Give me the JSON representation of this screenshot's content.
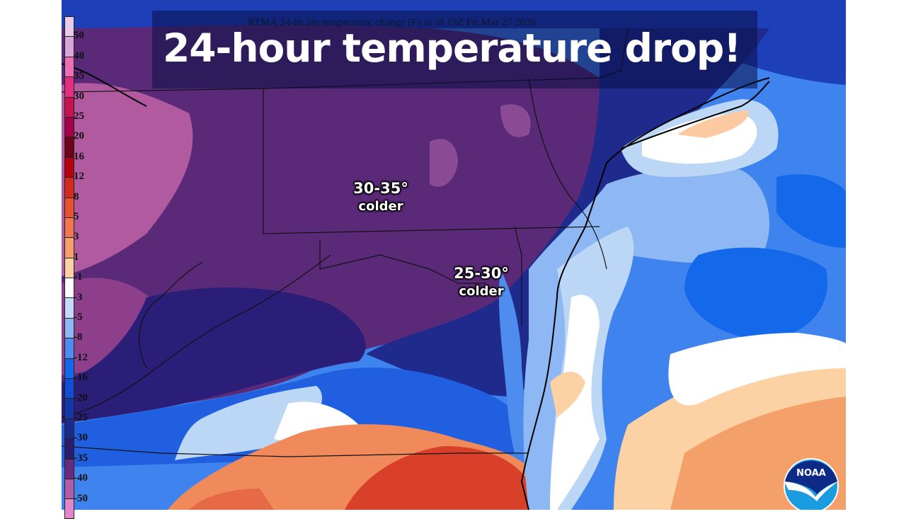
{
  "headline": "24-hour temperature drop!",
  "map": {
    "title": "RTMA 24-hr 2m temperature change (F) as of 19Z Fri Mar 27 2026",
    "units": "F",
    "region": "Mid-Atlantic / Northeast US",
    "annotations": [
      {
        "value": "30-35°",
        "note": "colder"
      },
      {
        "value": "25-30°",
        "note": "colder"
      }
    ]
  },
  "colorbar": {
    "labels": [
      "50",
      "40",
      "35",
      "30",
      "25",
      "20",
      "16",
      "12",
      "8",
      "5",
      "3",
      "1",
      "-1",
      "-3",
      "-5",
      "-8",
      "-12",
      "-16",
      "-20",
      "-25",
      "-30",
      "-35",
      "-40",
      "-50"
    ],
    "colors": [
      "#e8cbe8",
      "#d9a6d9",
      "#ec6fb3",
      "#e0307f",
      "#c8124f",
      "#a3004a",
      "#6c0519",
      "#b50410",
      "#d32b1d",
      "#e7532e",
      "#f0784f",
      "#f6a06d",
      "#fcd2a4",
      "#ffffff",
      "#c3dbf7",
      "#8db8f3",
      "#4e8ded",
      "#1468ea",
      "#0f4fd4",
      "#1538a8",
      "#1c2a88",
      "#2a1c6a",
      "#6a2a7e",
      "#b35ea4",
      "#e189c8"
    ]
  },
  "logo": {
    "text": "NOAA"
  },
  "colors": {
    "banner": "#0a0f46",
    "deep_purple": "#5b2a78",
    "navy": "#1e2a8c",
    "blue": "#1f5fe0",
    "light_blue": "#bcd6f6",
    "orange": "#f08a5a",
    "red": "#d9402a"
  }
}
